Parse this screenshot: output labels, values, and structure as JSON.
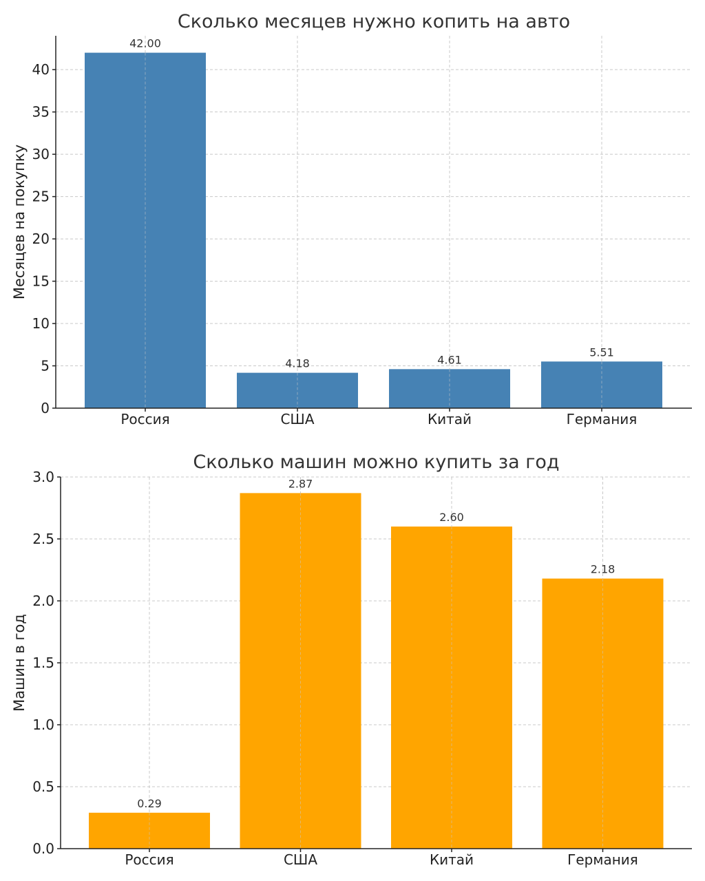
{
  "chart_data": [
    {
      "type": "bar",
      "title": "Сколько месяцев нужно копить на авто",
      "ylabel": "Месяцев на покупку",
      "xlabel": "",
      "categories": [
        "Россия",
        "США",
        "Китай",
        "Германия"
      ],
      "values": [
        42.0,
        4.18,
        4.61,
        5.51
      ],
      "value_labels": [
        "42.00",
        "4.18",
        "4.61",
        "5.51"
      ],
      "ylim": [
        0,
        44
      ],
      "yticks": [
        0,
        5,
        10,
        15,
        20,
        25,
        30,
        35,
        40
      ],
      "ytick_labels": [
        "0",
        "5",
        "10",
        "15",
        "20",
        "25",
        "30",
        "35",
        "40"
      ],
      "grid": true,
      "bar_color": "#4682b4"
    },
    {
      "type": "bar",
      "title": "Сколько машин можно купить за год",
      "ylabel": "Машин в год",
      "xlabel": "",
      "categories": [
        "Россия",
        "США",
        "Китай",
        "Германия"
      ],
      "values": [
        0.29,
        2.87,
        2.6,
        2.18
      ],
      "value_labels": [
        "0.29",
        "2.87",
        "2.60",
        "2.18"
      ],
      "ylim": [
        0,
        3.0
      ],
      "yticks": [
        0.0,
        0.5,
        1.0,
        1.5,
        2.0,
        2.5,
        3.0
      ],
      "ytick_labels": [
        "0.0",
        "0.5",
        "1.0",
        "1.5",
        "2.0",
        "2.5",
        "3.0"
      ],
      "grid": true,
      "bar_color": "#ffa500"
    }
  ]
}
